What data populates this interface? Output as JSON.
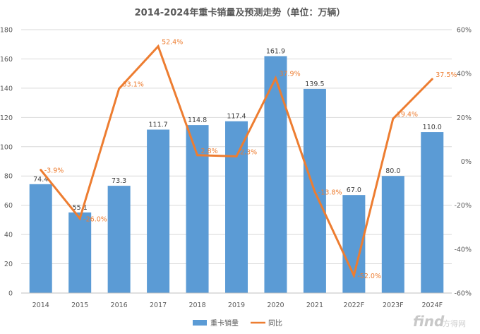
{
  "chart_data": {
    "type": "bar+line",
    "title": "2014-2024年重卡销量及预测走势（单位：万辆）",
    "categories": [
      "2014",
      "2015",
      "2016",
      "2017",
      "2018",
      "2019",
      "2020",
      "2021",
      "2022F",
      "2023F",
      "2024F"
    ],
    "series": [
      {
        "name": "重卡销量",
        "type": "bar",
        "axis": "left",
        "values": [
          74.4,
          55.1,
          73.3,
          111.7,
          114.8,
          117.4,
          161.9,
          139.5,
          67.0,
          80.0,
          110.0
        ],
        "labels": [
          "74.4",
          "55.1",
          "73.3",
          "111.7",
          "114.8",
          "117.4",
          "161.9",
          "139.5",
          "67.0",
          "80.0",
          "110.0"
        ],
        "color": "#5B9BD5"
      },
      {
        "name": "同比",
        "type": "line",
        "axis": "right",
        "values": [
          -3.9,
          -26.0,
          33.1,
          52.4,
          2.8,
          2.3,
          37.9,
          -13.8,
          -52.0,
          19.4,
          37.5
        ],
        "labels": [
          "-3.9%",
          "-26.0%",
          "33.1%",
          "52.4%",
          "2.8%",
          "2.3%",
          "37.9%",
          "-13.8%",
          "-52.0%",
          "19.4%",
          "37.5%"
        ],
        "color": "#ED7D31"
      }
    ],
    "y_left": {
      "min": 0,
      "max": 180,
      "step": 20,
      "ticks": [
        "0",
        "20",
        "40",
        "60",
        "80",
        "100",
        "120",
        "140",
        "160",
        "180"
      ]
    },
    "y_right": {
      "min": -60,
      "max": 60,
      "step": 20,
      "ticks": [
        "-60%",
        "-40%",
        "-20%",
        "0%",
        "20%",
        "40%",
        "60%"
      ]
    },
    "grid": true,
    "legend_position": "bottom"
  },
  "watermark": {
    "brand": "find",
    "brand_cn": "方得网"
  }
}
